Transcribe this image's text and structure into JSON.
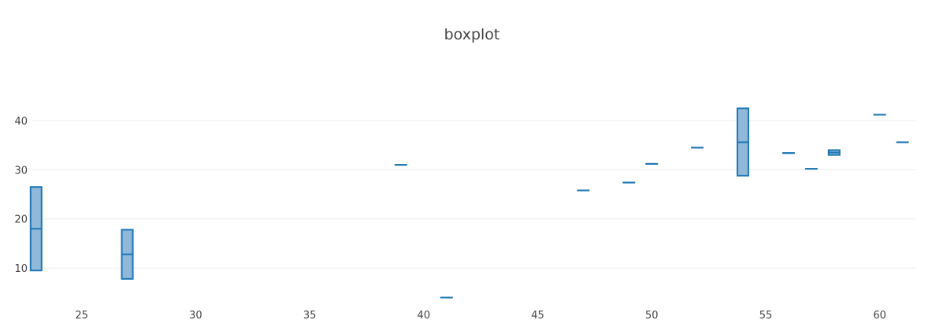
{
  "chart_data": {
    "type": "box",
    "title": "boxplot",
    "xlabel": "",
    "ylabel": "",
    "xlim": [
      22.8,
      61.6
    ],
    "ylim": [
      2.8,
      48.5
    ],
    "xticks": [
      25,
      30,
      35,
      40,
      45,
      50,
      55,
      60
    ],
    "yticks": [
      10,
      20,
      30,
      40
    ],
    "grid": {
      "x": false,
      "y": true
    },
    "legend": "none",
    "colors": {
      "box_stroke": "#1f77b4",
      "box_fill": "#8fb8d9",
      "grid": "#eeeeee",
      "text": "#444444"
    },
    "boxes": [
      {
        "x": 23,
        "min": 9.5,
        "q1": 9.5,
        "median": 18.0,
        "q3": 26.5,
        "max": 26.5
      },
      {
        "x": 27,
        "min": 7.8,
        "q1": 7.8,
        "median": 12.8,
        "q3": 17.8,
        "max": 17.8
      },
      {
        "x": 39,
        "min": 31.0,
        "q1": 31.0,
        "median": 31.0,
        "q3": 31.0,
        "max": 31.0
      },
      {
        "x": 41,
        "min": 4.0,
        "q1": 4.0,
        "median": 4.0,
        "q3": 4.0,
        "max": 4.0
      },
      {
        "x": 47,
        "min": 25.8,
        "q1": 25.8,
        "median": 25.8,
        "q3": 25.8,
        "max": 25.8
      },
      {
        "x": 49,
        "min": 27.4,
        "q1": 27.4,
        "median": 27.4,
        "q3": 27.4,
        "max": 27.4
      },
      {
        "x": 50,
        "min": 31.2,
        "q1": 31.2,
        "median": 31.2,
        "q3": 31.2,
        "max": 31.2
      },
      {
        "x": 52,
        "min": 34.5,
        "q1": 34.5,
        "median": 34.5,
        "q3": 34.5,
        "max": 34.5
      },
      {
        "x": 54,
        "min": 28.8,
        "q1": 28.8,
        "median": 35.6,
        "q3": 42.5,
        "max": 42.5
      },
      {
        "x": 56,
        "min": 33.4,
        "q1": 33.4,
        "median": 33.4,
        "q3": 33.4,
        "max": 33.4
      },
      {
        "x": 57,
        "min": 30.2,
        "q1": 30.2,
        "median": 30.2,
        "q3": 30.2,
        "max": 30.2
      },
      {
        "x": 58,
        "min": 33.0,
        "q1": 33.0,
        "median": 33.5,
        "q3": 34.0,
        "max": 34.0
      },
      {
        "x": 60,
        "min": 41.2,
        "q1": 41.2,
        "median": 41.2,
        "q3": 41.2,
        "max": 41.2
      },
      {
        "x": 61,
        "min": 35.6,
        "q1": 35.6,
        "median": 35.6,
        "q3": 35.6,
        "max": 35.6
      }
    ]
  }
}
